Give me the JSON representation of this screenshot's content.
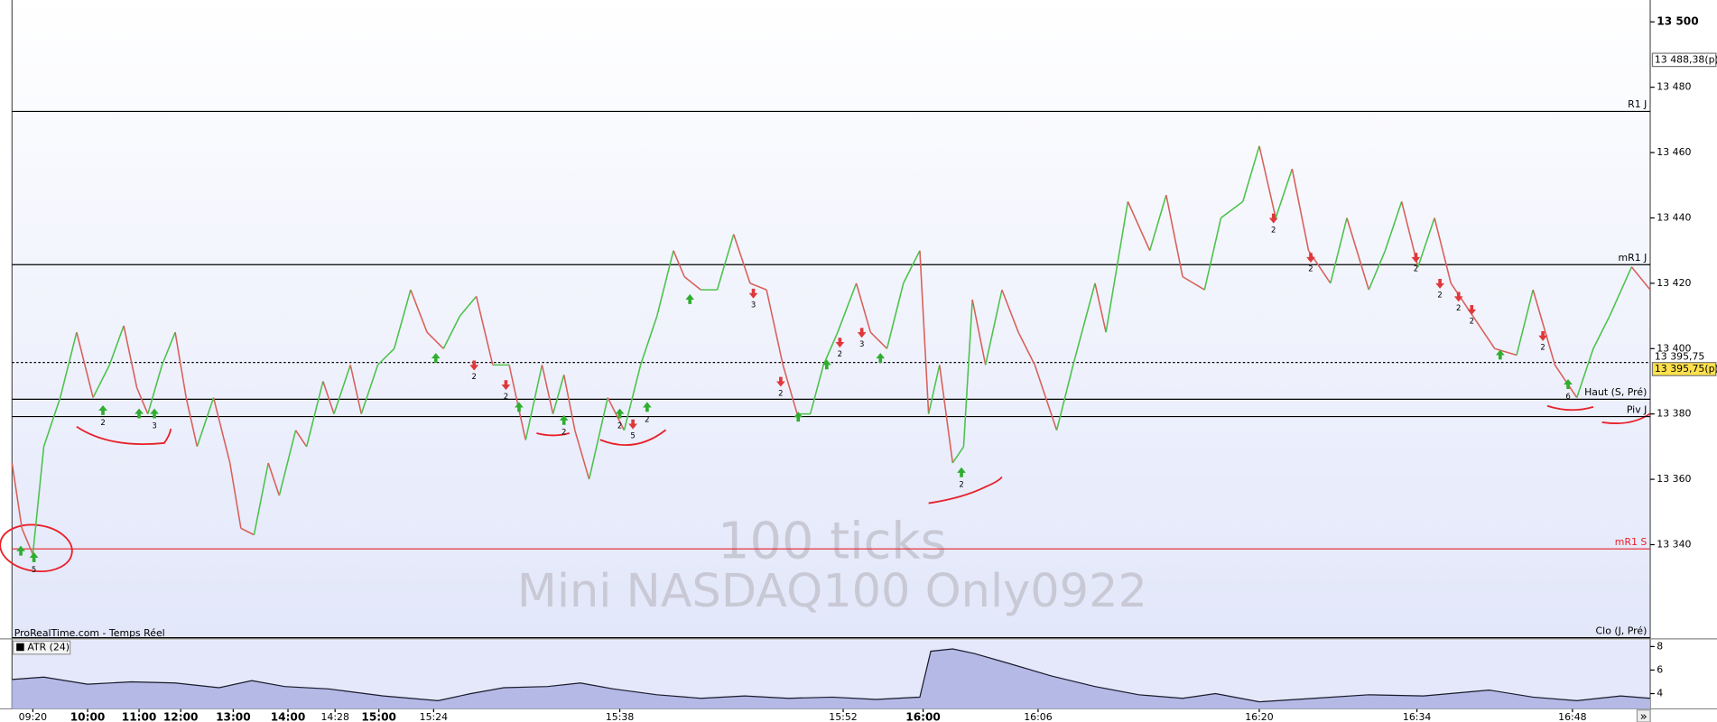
{
  "chart_data": [
    {
      "type": "line",
      "source": "ProRealTime.com - Temps Réel",
      "watermark": [
        "100 ticks",
        "Mini NASDAQ100 Only0922"
      ],
      "nav": "»",
      "x": [
        0,
        9,
        19,
        29,
        44,
        59,
        74,
        89,
        102,
        114,
        124,
        137,
        149,
        159,
        169,
        184,
        199,
        209,
        221,
        234,
        244,
        259,
        269,
        284,
        294,
        309,
        319,
        334,
        349,
        364,
        379,
        394,
        409,
        424,
        439,
        454,
        469,
        484,
        494,
        504,
        514,
        527,
        544,
        559,
        574,
        589,
        604,
        614,
        629,
        644,
        659,
        674,
        689,
        704,
        717,
        729,
        741,
        754,
        771,
        784,
        799,
        814,
        829,
        837,
        847,
        859,
        869,
        877,
        889,
        904,
        919,
        934,
        954,
        969,
        989,
        999,
        1019,
        1039,
        1054,
        1069,
        1089,
        1104,
        1124,
        1139,
        1154,
        1169,
        1184,
        1204,
        1219,
        1239,
        1254,
        1269,
        1284,
        1299,
        1314,
        1334,
        1354,
        1374,
        1389,
        1409,
        1429,
        1444,
        1459,
        1479,
        1496
      ],
      "series": [
        {
          "color": "#4cc24c",
          "down_color": "#d9605a",
          "values": [
            13365,
            13345,
            13337,
            13370,
            13385,
            13405,
            13385,
            13395,
            13407,
            13388,
            13380,
            13395,
            13405,
            13385,
            13370,
            13385,
            13365,
            13345,
            13343,
            13365,
            13355,
            13375,
            13370,
            13390,
            13380,
            13395,
            13380,
            13395,
            13400,
            13418,
            13405,
            13400,
            13410,
            13416,
            13395,
            13395,
            13372,
            13395,
            13380,
            13392,
            13375,
            13360,
            13385,
            13375,
            13395,
            13410,
            13430,
            13422,
            13418,
            13418,
            13435,
            13420,
            13418,
            13395,
            13380,
            13380,
            13395,
            13405,
            13420,
            13405,
            13400,
            13420,
            13430,
            13380,
            13395,
            13365,
            13370,
            13415,
            13395,
            13418,
            13405,
            13395,
            13375,
            13395,
            13420,
            13405,
            13445,
            13430,
            13447,
            13422,
            13418,
            13440,
            13445,
            13462,
            13440,
            13455,
            13430,
            13420,
            13440,
            13418,
            13430,
            13445,
            13425,
            13440,
            13420,
            13410,
            13400,
            13398,
            13418,
            13395,
            13385,
            13400,
            13410,
            13425,
            13418
          ]
        }
      ],
      "xlim": [
        0,
        1496
      ],
      "xticks": [
        {
          "value": 19,
          "label": "09:20"
        },
        {
          "value": 69,
          "label": "10:00"
        },
        {
          "value": 116,
          "label": "11:00"
        },
        {
          "value": 154,
          "label": "12:00"
        },
        {
          "value": 202,
          "label": "13:00"
        },
        {
          "value": 252,
          "label": "14:00"
        },
        {
          "value": 295,
          "label": "14:28"
        },
        {
          "value": 335,
          "label": "15:00"
        },
        {
          "value": 385,
          "label": "15:24"
        },
        {
          "value": 555,
          "label": "15:38"
        },
        {
          "value": 759,
          "label": "15:52"
        },
        {
          "value": 832,
          "label": "16:00"
        },
        {
          "value": 937,
          "label": "16:06"
        },
        {
          "value": 1139,
          "label": "16:20"
        },
        {
          "value": 1283,
          "label": "16:34"
        },
        {
          "value": 1425,
          "label": "16:48"
        }
      ],
      "ylim": [
        13311.5,
        13506.7
      ],
      "yticks": [
        {
          "value": 13340,
          "label": "13 340"
        },
        {
          "value": 13360,
          "label": "13 360"
        },
        {
          "value": 13380,
          "label": "13 380"
        },
        {
          "value": 13400,
          "label": "13 400"
        },
        {
          "value": 13420,
          "label": "13 420"
        },
        {
          "value": 13440,
          "label": "13 440"
        },
        {
          "value": 13460,
          "label": "13 460"
        },
        {
          "value": 13480,
          "label": "13 480"
        },
        {
          "value": 13500,
          "label": "13 500"
        }
      ],
      "levels": [
        {
          "label": "R1 J",
          "value": 13472.6,
          "color": "#000000"
        },
        {
          "label": "mR1 J",
          "value": 13425.7,
          "color": "#000000"
        },
        {
          "value": 13395.75,
          "color": "#000000",
          "dash": true
        },
        {
          "label": "Haut (S, Pré)",
          "value": 13384.5,
          "color": "#000000"
        },
        {
          "label": "Piv J",
          "value": 13379.2,
          "color": "#000000"
        },
        {
          "label": "mR1 S",
          "value": 13338.7,
          "color": "#e8202a"
        },
        {
          "label": "Clo (J, Pré)",
          "value": 13311.5,
          "color": "#000000"
        }
      ],
      "price_labels": [
        {
          "value": 13488.38,
          "label": "13 488,38(p)",
          "box": "#ffffff"
        },
        {
          "value": 13395.75,
          "label": "13 395,75"
        },
        {
          "value": 13395.75,
          "label": "13 395,75(p)",
          "box": "#ffe14d"
        }
      ],
      "signals": [
        {
          "x": 8,
          "value": 13338,
          "dir": "up"
        },
        {
          "x": 20,
          "value": 13336,
          "dir": "up",
          "label": "5"
        },
        {
          "x": 83,
          "value": 13381,
          "dir": "up",
          "label": "2"
        },
        {
          "x": 116,
          "value": 13380,
          "dir": "up"
        },
        {
          "x": 130,
          "value": 13380,
          "dir": "up",
          "label": "3"
        },
        {
          "x": 387,
          "value": 13397,
          "dir": "up"
        },
        {
          "x": 422,
          "value": 13395,
          "dir": "down",
          "label": "2"
        },
        {
          "x": 451,
          "value": 13389,
          "dir": "down",
          "label": "2"
        },
        {
          "x": 463,
          "value": 13382,
          "dir": "up"
        },
        {
          "x": 504,
          "value": 13378,
          "dir": "up",
          "label": "2"
        },
        {
          "x": 555,
          "value": 13380,
          "dir": "up",
          "label": "2"
        },
        {
          "x": 567,
          "value": 13377,
          "dir": "down",
          "label": "5"
        },
        {
          "x": 580,
          "value": 13382,
          "dir": "up",
          "label": "2"
        },
        {
          "x": 619,
          "value": 13415,
          "dir": "up"
        },
        {
          "x": 677,
          "value": 13417,
          "dir": "down",
          "label": "3"
        },
        {
          "x": 702,
          "value": 13390,
          "dir": "down",
          "label": "2"
        },
        {
          "x": 718,
          "value": 13379,
          "dir": "up"
        },
        {
          "x": 744,
          "value": 13395,
          "dir": "up"
        },
        {
          "x": 756,
          "value": 13402,
          "dir": "down",
          "label": "2"
        },
        {
          "x": 776,
          "value": 13405,
          "dir": "down",
          "label": "3"
        },
        {
          "x": 793,
          "value": 13397,
          "dir": "up"
        },
        {
          "x": 867,
          "value": 13362,
          "dir": "up",
          "label": "2"
        },
        {
          "x": 1152,
          "value": 13440,
          "dir": "down",
          "label": "2"
        },
        {
          "x": 1186,
          "value": 13428,
          "dir": "down",
          "label": "2"
        },
        {
          "x": 1282,
          "value": 13428,
          "dir": "down",
          "label": "2"
        },
        {
          "x": 1304,
          "value": 13420,
          "dir": "down",
          "label": "2"
        },
        {
          "x": 1321,
          "value": 13416,
          "dir": "down",
          "label": "2"
        },
        {
          "x": 1333,
          "value": 13412,
          "dir": "down",
          "label": "2"
        },
        {
          "x": 1359,
          "value": 13398,
          "dir": "up"
        },
        {
          "x": 1398,
          "value": 13404,
          "dir": "down",
          "label": "2"
        },
        {
          "x": 1421,
          "value": 13389,
          "dir": "up",
          "label": "6"
        }
      ]
    },
    {
      "type": "area",
      "legend": "ATR (24)",
      "x": [
        0,
        29,
        69,
        109,
        149,
        189,
        219,
        249,
        289,
        339,
        389,
        419,
        449,
        489,
        519,
        549,
        589,
        629,
        669,
        709,
        749,
        789,
        829,
        839,
        859,
        879,
        909,
        949,
        989,
        1029,
        1069,
        1099,
        1139,
        1189,
        1239,
        1289,
        1349,
        1389,
        1429,
        1469,
        1496
      ],
      "values": [
        5.2,
        5.4,
        4.8,
        5.0,
        4.9,
        4.5,
        5.1,
        4.6,
        4.4,
        3.8,
        3.4,
        4.0,
        4.5,
        4.6,
        4.9,
        4.4,
        3.9,
        3.6,
        3.8,
        3.6,
        3.7,
        3.5,
        3.7,
        7.6,
        7.8,
        7.4,
        6.6,
        5.5,
        4.6,
        3.9,
        3.6,
        4.0,
        3.3,
        3.6,
        3.9,
        3.8,
        4.3,
        3.7,
        3.4,
        3.8,
        3.6
      ],
      "color": "#b4b9e6",
      "xlim": [
        0,
        1496
      ],
      "ylim": [
        2.7,
        8.56
      ],
      "yticks": [
        4,
        6,
        8
      ]
    }
  ]
}
